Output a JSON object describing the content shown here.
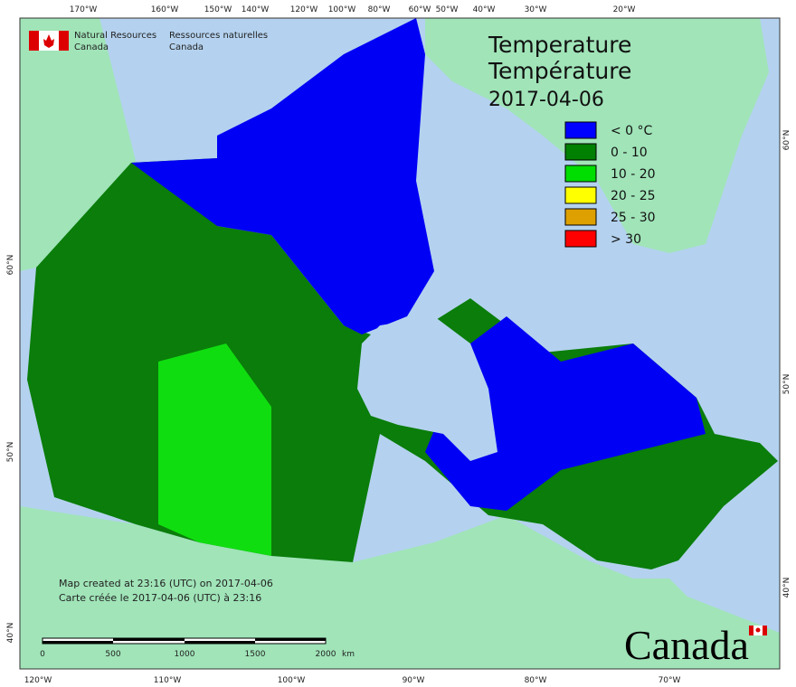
{
  "header": {
    "department_en": [
      "Natural Resources",
      "Canada"
    ],
    "department_fr": [
      "Ressources naturelles",
      "Canada"
    ]
  },
  "title": {
    "en": "Temperature",
    "fr": "Température",
    "date": "2017-04-06"
  },
  "legend": [
    {
      "label": "< 0 °C",
      "color": "#0000ff"
    },
    {
      "label": "0 - 10",
      "color": "#008000"
    },
    {
      "label": "10 - 20",
      "color": "#00dd00"
    },
    {
      "label": "20 - 25",
      "color": "#ffff00"
    },
    {
      "label": "25 - 30",
      "color": "#dda000"
    },
    {
      "label": "> 30",
      "color": "#ff0000"
    }
  ],
  "graticule": {
    "top": [
      "170°W",
      "160°W",
      "150°W",
      "140°W",
      "120°W",
      "100°W",
      "80°W",
      "60°W",
      "50°W",
      "40°W",
      "30°W",
      "20°W"
    ],
    "bottom": [
      "120°W",
      "110°W",
      "100°W",
      "90°W",
      "80°W",
      "70°W"
    ],
    "left": [
      "60°N",
      "50°N",
      "40°N"
    ],
    "right": [
      "60°N",
      "50°N",
      "40°N"
    ]
  },
  "credits": [
    "Map created at 23:16 (UTC) on 2017-04-06",
    "Carte créée le 2017-04-06 (UTC) à 23:16"
  ],
  "scale": {
    "labels": [
      "0",
      "500",
      "1000",
      "1500",
      "2000"
    ],
    "unit": "km"
  },
  "wordmark": "Canada"
}
